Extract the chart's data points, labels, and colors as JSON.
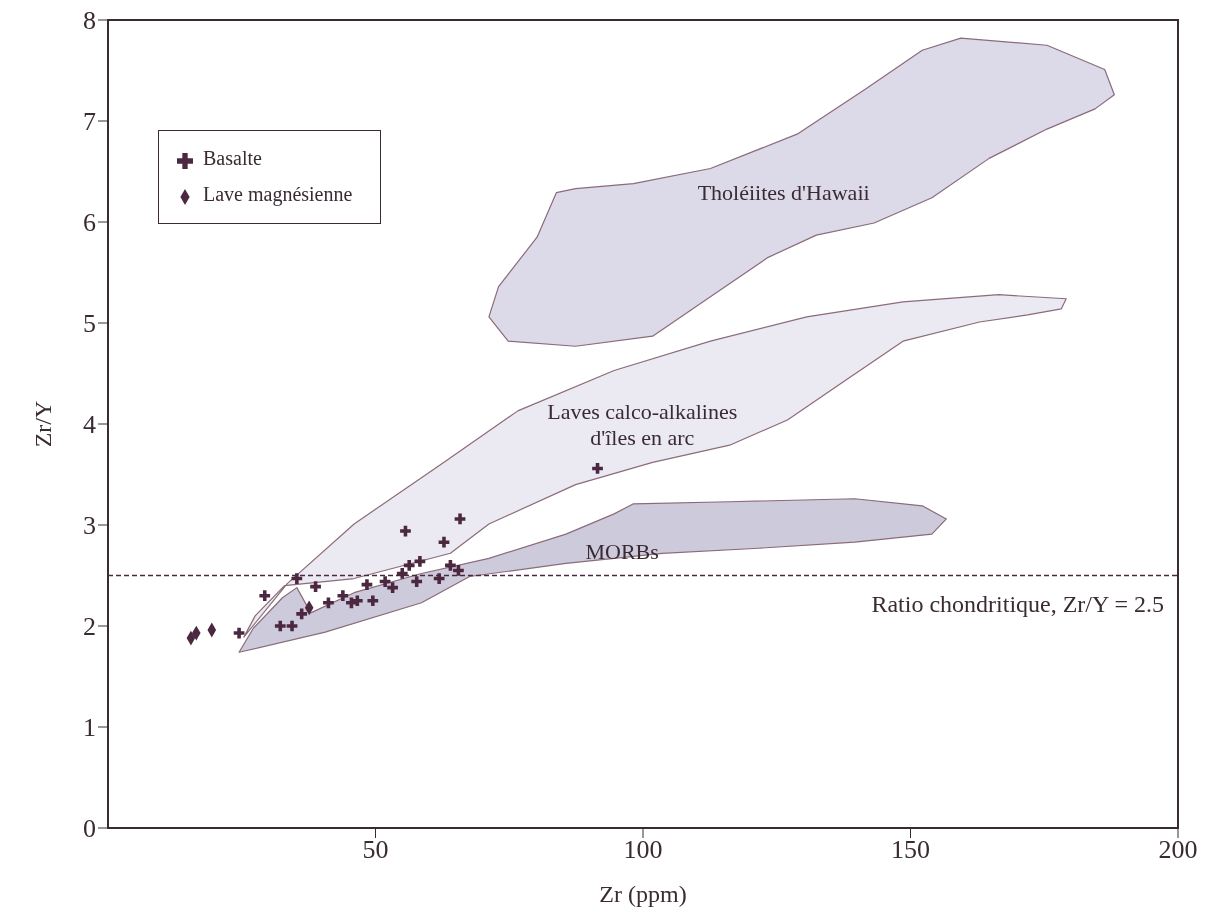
{
  "chart_data": {
    "type": "scatter",
    "xlabel": "Zr (ppm)",
    "ylabel": "Zr/Y",
    "xlim": [
      0,
      200
    ],
    "xticks": [
      50,
      100,
      150,
      200
    ],
    "ylim": [
      0,
      8
    ],
    "yticks": [
      0,
      1,
      2,
      3,
      4,
      5,
      6,
      7,
      8
    ],
    "grid": false,
    "legend": "top left",
    "series": [
      {
        "type": "area",
        "name": "Laves calco-alkalines\nd'îles en arc",
        "color": "#ebe9f2",
        "x": [
          25.4,
          33.5,
          46.0,
          62.2,
          76.6,
          94.6,
          112.6,
          130.6,
          148.6,
          166.5,
          179.1,
          178.2,
          171.9,
          162.9,
          148.6,
          137.8,
          127.0,
          116.2,
          101.8,
          87.4,
          71.2,
          64.0,
          46.0,
          33.0,
          27.5
        ],
        "values": [
          1.89,
          2.42,
          3.01,
          3.6,
          4.13,
          4.53,
          4.82,
          5.06,
          5.21,
          5.28,
          5.24,
          5.14,
          5.08,
          5.01,
          4.82,
          4.43,
          4.04,
          3.79,
          3.62,
          3.4,
          3.01,
          2.72,
          2.47,
          2.4,
          2.1
        ]
      },
      {
        "type": "area",
        "name": "MORBs",
        "color": "#cdcadb",
        "x": [
          24.5,
          40.6,
          58.6,
          67.6,
          85.6,
          103.6,
          121.6,
          139.6,
          154.0,
          156.7,
          152.2,
          139.6,
          116.2,
          98.2,
          94.6,
          85.6,
          71.2,
          58.6,
          46.0,
          37.9,
          35.3,
          32.6,
          27.2
        ],
        "values": [
          1.74,
          1.94,
          2.23,
          2.49,
          2.62,
          2.72,
          2.77,
          2.83,
          2.91,
          3.06,
          3.19,
          3.26,
          3.23,
          3.21,
          3.11,
          2.91,
          2.67,
          2.52,
          2.33,
          2.13,
          2.38,
          2.28,
          1.98
        ]
      },
      {
        "type": "area",
        "name": "Tholéiites d'Hawaii",
        "color": "#dcd9e8",
        "x": [
          71.2,
          73.0,
          80.2,
          83.8,
          87.4,
          98.2,
          112.6,
          128.8,
          141.4,
          152.2,
          159.4,
          175.5,
          186.3,
          188.1,
          184.5,
          175.5,
          164.7,
          154.0,
          143.2,
          132.4,
          123.4,
          112.6,
          101.8,
          87.4,
          74.8
        ],
        "values": [
          5.06,
          5.36,
          5.85,
          6.29,
          6.33,
          6.38,
          6.53,
          6.87,
          7.31,
          7.7,
          7.82,
          7.75,
          7.51,
          7.26,
          7.12,
          6.92,
          6.63,
          6.24,
          5.99,
          5.87,
          5.65,
          5.26,
          4.87,
          4.77,
          4.82
        ]
      },
      {
        "type": "scatter",
        "name": "Basalte",
        "marker": "cross",
        "color": "#4b2840",
        "x": [
          24.5,
          29.3,
          32.2,
          34.4,
          35.3,
          36.2,
          38.8,
          41.2,
          43.9,
          45.5,
          46.6,
          49.5,
          48.4,
          51.8,
          53.2,
          55.0,
          56.3,
          58.3,
          57.7,
          61.9,
          64.0,
          65.5,
          55.6,
          62.8,
          65.8,
          91.5
        ],
        "values": [
          1.93,
          2.3,
          2.0,
          2.0,
          2.47,
          2.12,
          2.39,
          2.23,
          2.3,
          2.23,
          2.25,
          2.25,
          2.41,
          2.44,
          2.38,
          2.52,
          2.6,
          2.64,
          2.44,
          2.47,
          2.6,
          2.55,
          2.94,
          2.83,
          3.06,
          3.56
        ]
      },
      {
        "type": "scatter",
        "name": "Lave magnésienne",
        "marker": "diamond",
        "color": "#4b2840",
        "x": [
          15.5,
          16.5,
          19.4,
          37.6
        ],
        "values": [
          1.88,
          1.93,
          1.96,
          2.18
        ]
      }
    ],
    "ref_lines": [
      {
        "axis": "y",
        "value": 2.5,
        "label": "Ratio chondritique, Zr/Y = 2.5",
        "line_style": "dashed",
        "color": "#4b2840"
      }
    ]
  }
}
